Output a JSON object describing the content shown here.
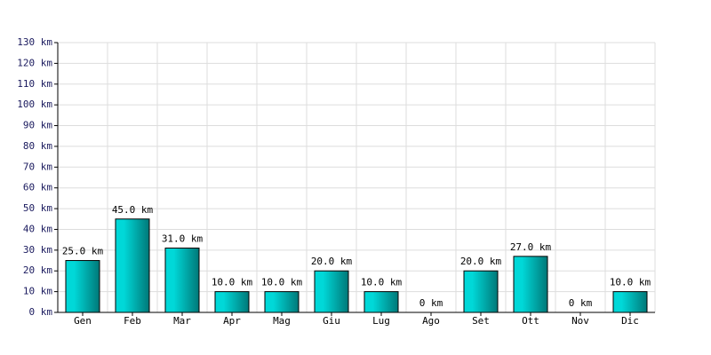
{
  "chart_data": {
    "type": "bar",
    "categories": [
      "Gen",
      "Feb",
      "Mar",
      "Apr",
      "Mag",
      "Giu",
      "Lug",
      "Ago",
      "Set",
      "Ott",
      "Nov",
      "Dic"
    ],
    "values": [
      25,
      45,
      31,
      10,
      10,
      20,
      10,
      0,
      20,
      27,
      0,
      10
    ],
    "value_labels": [
      "25.0 km",
      "45.0 km",
      "31.0 km",
      "10.0 km",
      "10.0 km",
      "20.0 km",
      "10.0 km",
      "0 km",
      "20.0 km",
      "27.0 km",
      "0 km",
      "10.0 km"
    ],
    "color": "#00d8d8",
    "ylim": [
      0,
      130
    ],
    "yticks": [
      {
        "value": 0,
        "label": "0 km"
      },
      {
        "value": 10,
        "label": "10 km"
      },
      {
        "value": 20,
        "label": "20 km"
      },
      {
        "value": 30,
        "label": "30 km"
      },
      {
        "value": 40,
        "label": "40 km"
      },
      {
        "value": 50,
        "label": "50 km"
      },
      {
        "value": 60,
        "label": "60 km"
      },
      {
        "value": 70,
        "label": "70 km"
      },
      {
        "value": 80,
        "label": "80 km"
      },
      {
        "value": 90,
        "label": "90 km"
      },
      {
        "value": 100,
        "label": "100 km"
      },
      {
        "value": 110,
        "label": "110 km"
      },
      {
        "value": 120,
        "label": "120 km"
      },
      {
        "value": 130,
        "label": "130 km"
      }
    ],
    "grid": true
  }
}
